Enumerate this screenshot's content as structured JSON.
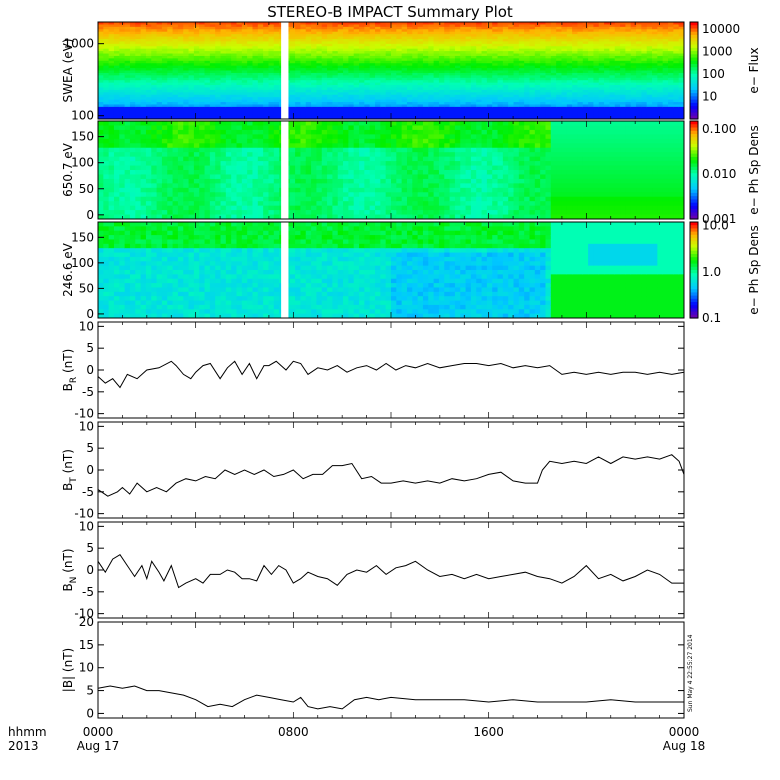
{
  "chart_data": {
    "title": "STEREO-B IMPACT Summary Plot",
    "time_axis": {
      "corner_labels": [
        "hhmm",
        "2013"
      ],
      "ticks": [
        {
          "hour": 0,
          "label": "0000",
          "sublabel": "Aug 17"
        },
        {
          "hour": 8,
          "label": "0800",
          "sublabel": ""
        },
        {
          "hour": 16,
          "label": "1600",
          "sublabel": ""
        },
        {
          "hour": 24,
          "label": "0000",
          "sublabel": "Aug 18"
        }
      ],
      "range_hours": [
        0,
        24
      ],
      "data_gap_hours": [
        7.5,
        7.8
      ]
    },
    "timestamp": "Sun May  4 22:55:27 2014",
    "spectrograms": [
      {
        "type": "heatmap",
        "ylabel": "SWEA (eV)",
        "ylog": true,
        "ylim": [
          90,
          2000
        ],
        "yticks": [
          {
            "value": 1000,
            "label": "1000"
          },
          {
            "value": 100,
            "label": "100"
          }
        ],
        "colorbar_label": "e− Flux",
        "colorbar_ticks": [
          {
            "value": 10000,
            "label": "10000"
          },
          {
            "value": 1000,
            "label": "1000"
          },
          {
            "value": 100,
            "label": "100"
          },
          {
            "value": 10,
            "label": "10"
          }
        ],
        "colorbar_log_range": [
          1,
          20000
        ]
      },
      {
        "type": "heatmap",
        "ylabel": "650.7 eV",
        "ylog": false,
        "ylim": [
          -8,
          180
        ],
        "yticks": [
          {
            "value": 150,
            "label": "150"
          },
          {
            "value": 100,
            "label": "100"
          },
          {
            "value": 50,
            "label": "50"
          },
          {
            "value": 0,
            "label": "0"
          }
        ],
        "colorbar_label": "e− Ph Sp Dens",
        "colorbar_ticks": [
          {
            "value": 0.1,
            "label": "0.100"
          },
          {
            "value": 0.01,
            "label": "0.010"
          },
          {
            "value": 0.001,
            "label": "0.001"
          }
        ],
        "colorbar_log_range": [
          0.001,
          0.15
        ]
      },
      {
        "type": "heatmap",
        "ylabel": "246.6 eV",
        "ylog": false,
        "ylim": [
          -8,
          180
        ],
        "yticks": [
          {
            "value": 150,
            "label": "150"
          },
          {
            "value": 100,
            "label": "100"
          },
          {
            "value": 50,
            "label": "50"
          },
          {
            "value": 0,
            "label": "0"
          }
        ],
        "colorbar_label": "e− Ph Sp Dens",
        "colorbar_ticks": [
          {
            "value": 10,
            "label": "10.0"
          },
          {
            "value": 1,
            "label": "1.0"
          },
          {
            "value": 0.1,
            "label": "0.1"
          }
        ],
        "colorbar_log_range": [
          0.1,
          12
        ]
      }
    ],
    "line_panels": [
      {
        "type": "line",
        "ylabel": {
          "main": "B",
          "sub": "R",
          "unit": " (nT)"
        },
        "ylim": [
          -11,
          11
        ],
        "yticks": [
          10,
          5,
          0,
          -5,
          -10
        ],
        "series": [
          {
            "x": [
              0,
              0.3,
              0.6,
              0.9,
              1.2,
              1.6,
              2,
              2.5,
              3,
              3.2,
              3.5,
              3.8,
              4,
              4.3,
              4.6,
              5,
              5.3,
              5.6,
              5.9,
              6.2,
              6.5,
              6.8,
              7,
              7.3,
              7.7,
              8,
              8.3,
              8.6,
              9,
              9.4,
              9.8,
              10.2,
              10.6,
              11,
              11.4,
              11.8,
              12.2,
              12.6,
              13,
              13.5,
              14,
              14.5,
              15,
              15.5,
              16,
              16.5,
              17,
              17.5,
              18,
              18.5,
              19,
              19.5,
              20,
              20.5,
              21,
              21.5,
              22,
              22.5,
              23,
              23.5,
              24
            ],
            "y": [
              -1.5,
              -3,
              -2,
              -4,
              -1,
              -2,
              0,
              0.5,
              2,
              1,
              -1,
              -2,
              -0.5,
              1,
              1.5,
              -2,
              0.5,
              2,
              -1,
              1.5,
              -2,
              1,
              1,
              2,
              0,
              2,
              1.5,
              -1,
              0.5,
              0,
              1,
              -0.5,
              0.5,
              1,
              0,
              1.5,
              0,
              1,
              0.5,
              1.5,
              0.5,
              1,
              1.5,
              1.5,
              1,
              1.5,
              0.5,
              1,
              0.5,
              1,
              -1,
              -0.5,
              -1,
              -0.5,
              -1,
              -0.5,
              -0.5,
              -1,
              -0.5,
              -1,
              -0.5
            ]
          }
        ]
      },
      {
        "type": "line",
        "ylabel": {
          "main": "B",
          "sub": "T",
          "unit": " (nT)"
        },
        "ylim": [
          -11,
          11
        ],
        "yticks": [
          10,
          5,
          0,
          -5,
          -10
        ],
        "series": [
          {
            "x": [
              0,
              0.4,
              0.8,
              1,
              1.3,
              1.6,
              2,
              2.4,
              2.8,
              3.2,
              3.6,
              4,
              4.4,
              4.8,
              5.2,
              5.6,
              6,
              6.4,
              6.8,
              7.2,
              7.6,
              8,
              8.4,
              8.8,
              9.2,
              9.6,
              10,
              10.4,
              10.8,
              11.2,
              11.6,
              12,
              12.5,
              13,
              13.5,
              14,
              14.5,
              15,
              15.5,
              16,
              16.5,
              17,
              17.5,
              18,
              18.2,
              18.5,
              19,
              19.5,
              20,
              20.5,
              21,
              21.5,
              22,
              22.5,
              23,
              23.5,
              23.8,
              24
            ],
            "y": [
              -4.5,
              -6,
              -5,
              -4,
              -5.5,
              -3,
              -5,
              -4,
              -5,
              -3,
              -2,
              -2.5,
              -1.5,
              -2,
              0,
              -1,
              0,
              -1,
              0,
              -1.5,
              -1,
              0,
              -2,
              -1,
              -1,
              1,
              1,
              1.5,
              -2,
              -1.5,
              -3,
              -3,
              -2.5,
              -3,
              -2.5,
              -3,
              -2,
              -2.5,
              -2,
              -1,
              -0.5,
              -2.5,
              -3,
              -3,
              0,
              2,
              1.5,
              2,
              1.5,
              3,
              1.5,
              3,
              2.5,
              3,
              2.5,
              3.5,
              2,
              -1
            ]
          }
        ]
      },
      {
        "type": "line",
        "ylabel": {
          "main": "B",
          "sub": "N",
          "unit": " (nT)"
        },
        "ylim": [
          -11,
          11
        ],
        "yticks": [
          10,
          5,
          0,
          -5,
          -10
        ],
        "series": [
          {
            "x": [
              0,
              0.3,
              0.6,
              0.9,
              1.2,
              1.5,
              1.8,
              2,
              2.2,
              2.5,
              2.7,
              3,
              3.3,
              3.6,
              4,
              4.3,
              4.6,
              5,
              5.3,
              5.6,
              5.9,
              6.2,
              6.5,
              6.8,
              7.1,
              7.4,
              7.7,
              8,
              8.3,
              8.6,
              9,
              9.4,
              9.8,
              10.2,
              10.6,
              11,
              11.4,
              11.8,
              12.2,
              12.6,
              13,
              13.5,
              14,
              14.5,
              15,
              15.5,
              16,
              16.5,
              17,
              17.5,
              18,
              18.5,
              19,
              19.5,
              20,
              20.5,
              21,
              21.5,
              22,
              22.5,
              23,
              23.5,
              24
            ],
            "y": [
              2,
              -0.5,
              2.5,
              3.5,
              1,
              -1.5,
              1,
              -2,
              2,
              -0.5,
              -2.5,
              1,
              -4,
              -3,
              -2,
              -3,
              -1,
              -1,
              0,
              -0.5,
              -2,
              -2,
              -2.5,
              1,
              -1,
              1,
              0,
              -3,
              -2,
              -0.5,
              -1.5,
              -2,
              -3.5,
              -1,
              0,
              -0.5,
              1,
              -1,
              0.5,
              1,
              2,
              0,
              -1.5,
              -1,
              -2,
              -1,
              -2,
              -1.5,
              -1,
              -0.5,
              -1.5,
              -2,
              -3,
              -1.5,
              1,
              -2,
              -1,
              -2.5,
              -1.5,
              0,
              -1,
              -3,
              -3
            ]
          }
        ]
      },
      {
        "type": "line",
        "ylabel": {
          "main": "|B|",
          "sub": "",
          "unit": " (nT)"
        },
        "ylim": [
          -1,
          20
        ],
        "yticks": [
          20,
          15,
          10,
          5,
          0
        ],
        "series": [
          {
            "x": [
              0,
              0.5,
              1,
              1.5,
              2,
              2.5,
              3,
              3.5,
              4,
              4.5,
              5,
              5.5,
              6,
              6.5,
              7,
              7.5,
              8,
              8.3,
              8.6,
              9,
              9.5,
              10,
              10.5,
              11,
              11.5,
              12,
              13,
              14,
              15,
              16,
              17,
              18,
              19,
              20,
              21,
              22,
              23,
              24
            ],
            "y": [
              5.5,
              6,
              5.5,
              6,
              5,
              5,
              4.5,
              4,
              3,
              1.5,
              2,
              1.5,
              3,
              4,
              3.5,
              3,
              2.5,
              3.5,
              1.5,
              1,
              1.5,
              1,
              3,
              3.5,
              3,
              3.5,
              3,
              3,
              3,
              2.5,
              3,
              2.5,
              2.5,
              2.5,
              3,
              2.5,
              2.5,
              2.5
            ]
          }
        ]
      }
    ]
  }
}
